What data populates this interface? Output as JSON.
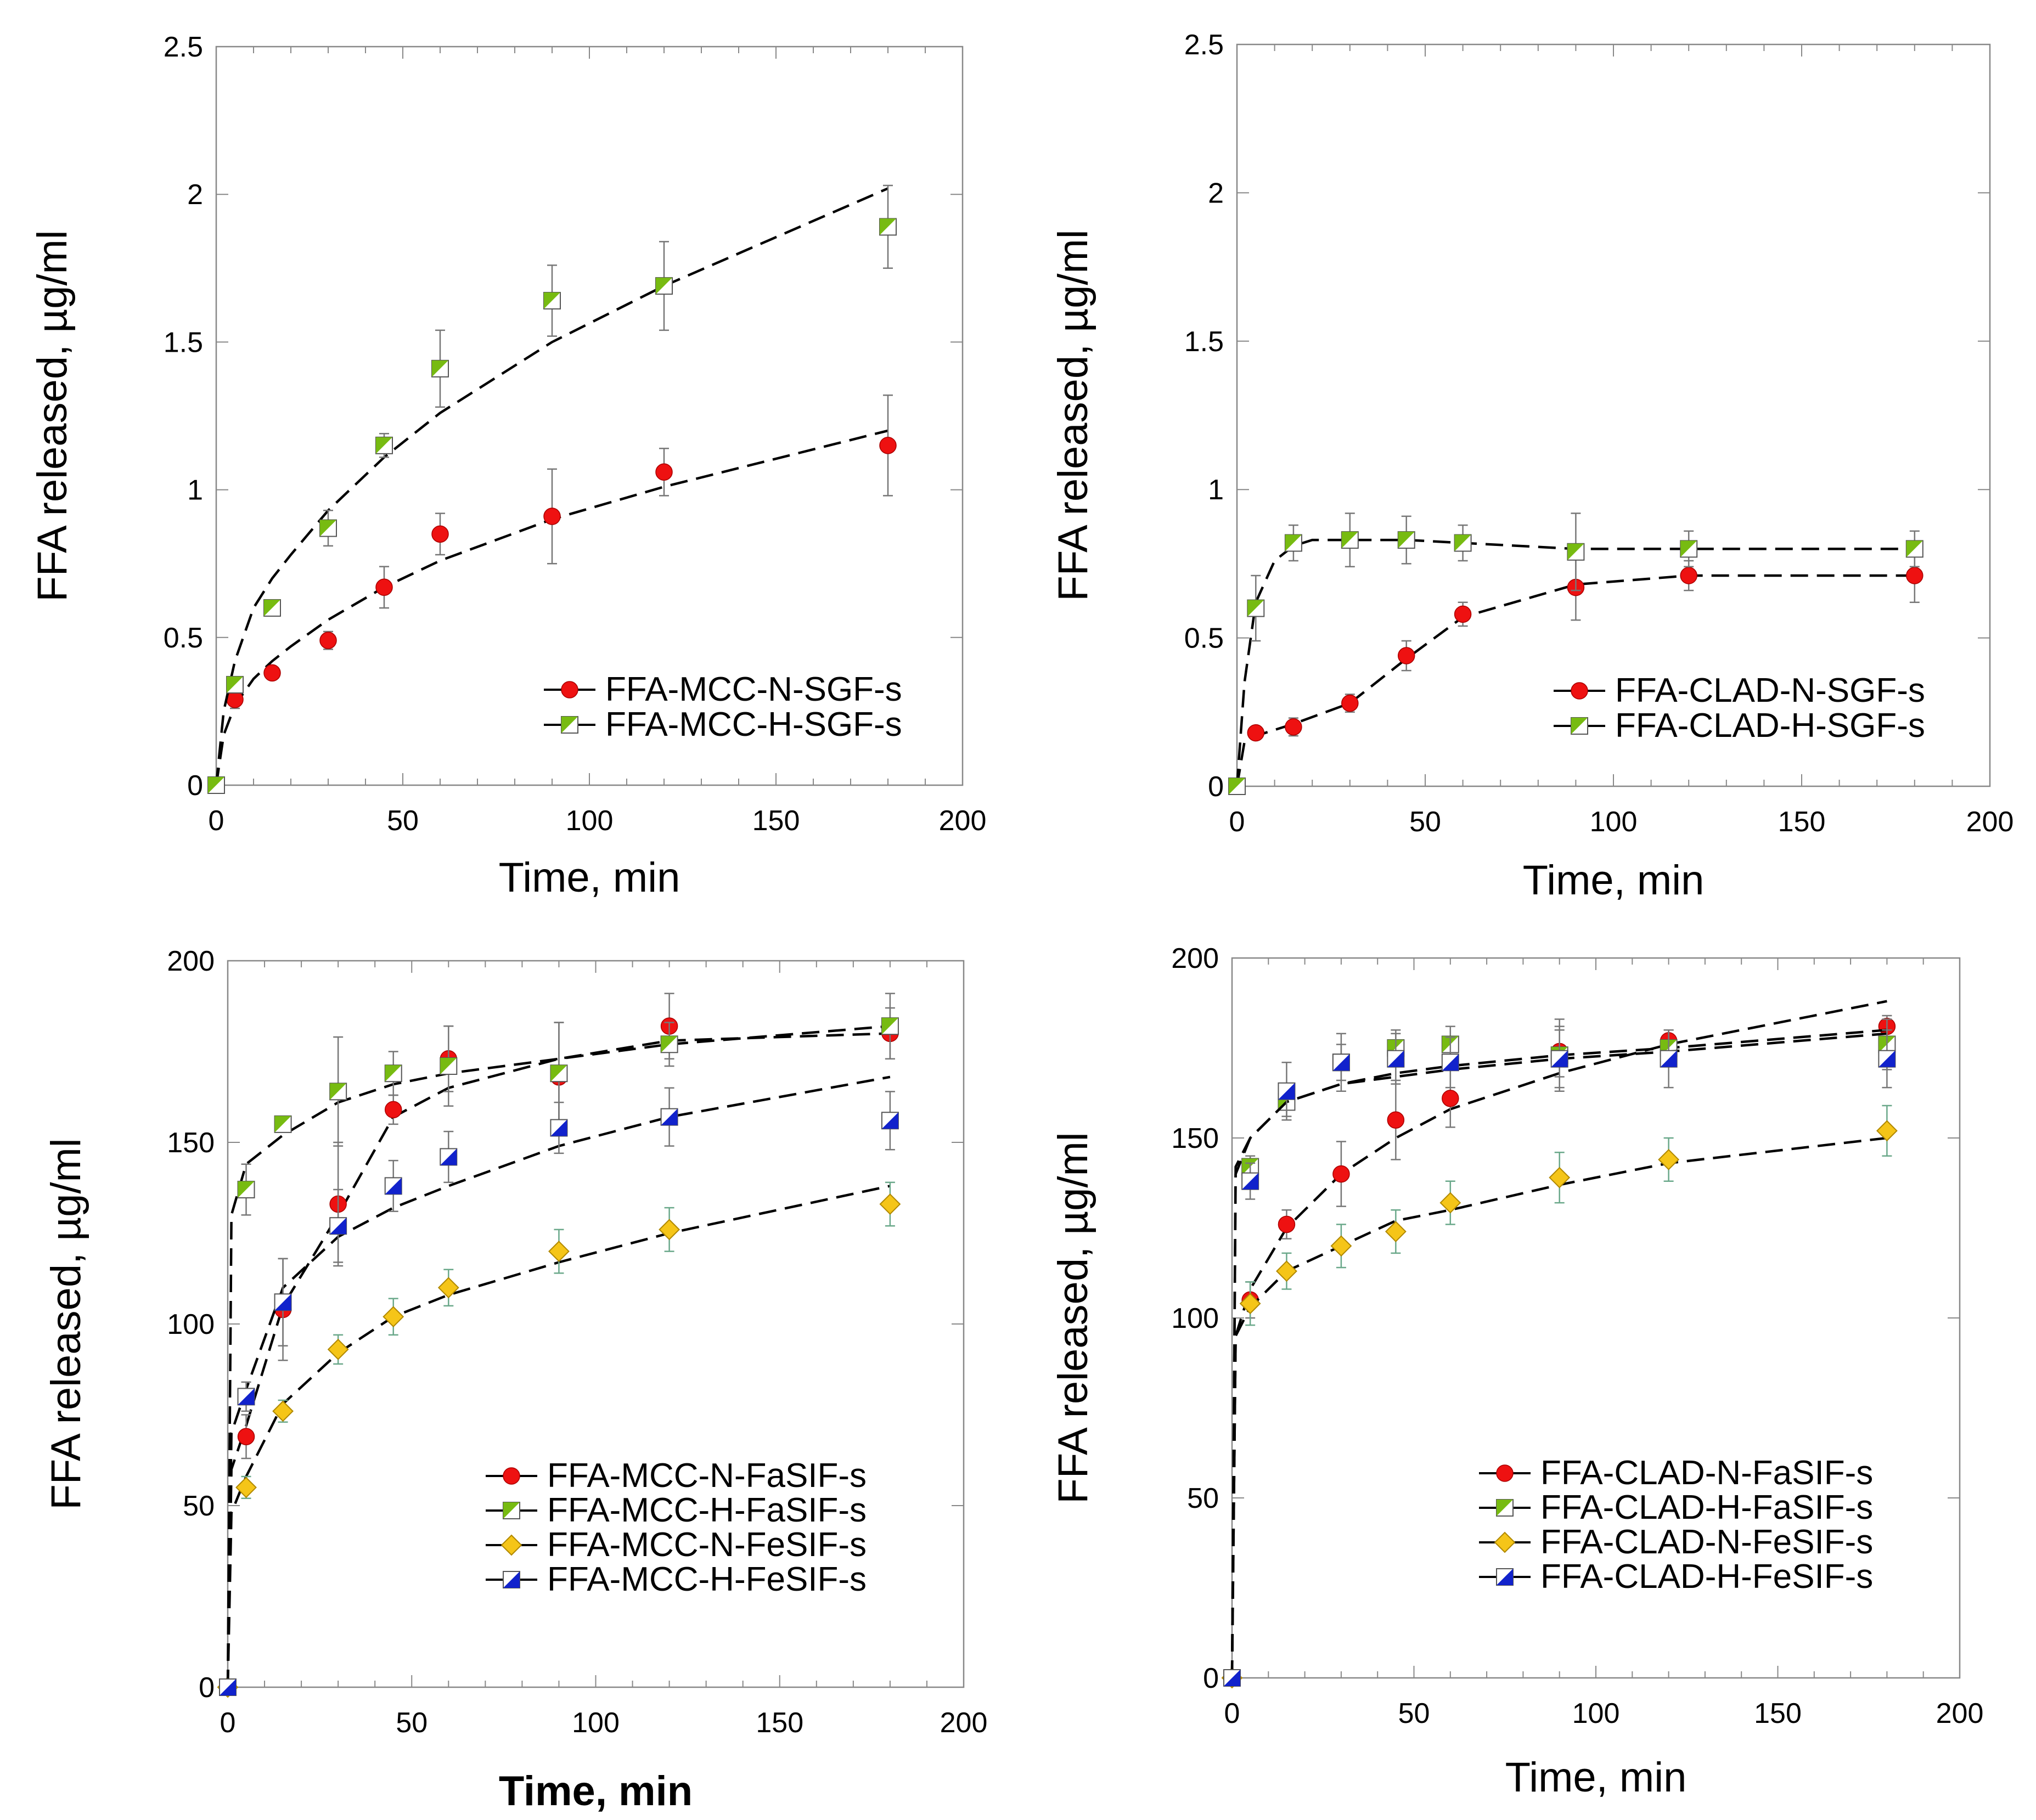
{
  "chart_data": [
    {
      "type": "scatter",
      "title": "",
      "xlabel": "Time, min",
      "ylabel": "FFA released, µg/ml",
      "xlim": [
        0,
        200
      ],
      "ylim": [
        0,
        2.5
      ],
      "xticks": [
        0,
        50,
        100,
        150,
        200
      ],
      "yticks": [
        0,
        0.5,
        1,
        1.5,
        2,
        2.5
      ],
      "ytick_labels": [
        "0",
        "0.5",
        "1",
        "1.5",
        "2",
        "2.5"
      ],
      "legend": "bottom-right",
      "series": [
        {
          "name": "FFA-MCC-N-SGF-s",
          "marker": "circle",
          "color": "#ee1111",
          "x": [
            0,
            5,
            15,
            30,
            45,
            60,
            90,
            120,
            180
          ],
          "y": [
            0,
            0.29,
            0.38,
            0.49,
            0.67,
            0.85,
            0.91,
            1.06,
            1.15
          ],
          "err": [
            0,
            0.03,
            0.02,
            0.03,
            0.07,
            0.07,
            0.16,
            0.08,
            0.17
          ],
          "fit_x": [
            0,
            2,
            5,
            10,
            15,
            20,
            30,
            45,
            60,
            90,
            120,
            180
          ],
          "fit_y": [
            0,
            0.17,
            0.27,
            0.36,
            0.42,
            0.47,
            0.56,
            0.67,
            0.76,
            0.9,
            1.01,
            1.2
          ]
        },
        {
          "name": "FFA-MCC-H-SGF-s",
          "marker": "square-half-ul",
          "color": "#77bb11",
          "x": [
            0,
            5,
            15,
            30,
            45,
            60,
            90,
            120,
            180
          ],
          "y": [
            0,
            0.34,
            0.6,
            0.87,
            1.15,
            1.41,
            1.64,
            1.69,
            1.89
          ],
          "err": [
            0,
            0.02,
            0.01,
            0.06,
            0.04,
            0.13,
            0.12,
            0.15,
            0.14
          ],
          "fit_x": [
            0,
            2,
            5,
            10,
            15,
            20,
            30,
            45,
            60,
            90,
            120,
            180
          ],
          "fit_y": [
            0,
            0.25,
            0.42,
            0.6,
            0.7,
            0.78,
            0.93,
            1.11,
            1.26,
            1.5,
            1.69,
            2.02
          ]
        }
      ]
    },
    {
      "type": "scatter",
      "title": "",
      "xlabel": "Time, min",
      "ylabel": "FFA released, µg/ml",
      "xlim": [
        0,
        200
      ],
      "ylim": [
        0,
        2.5
      ],
      "xticks": [
        0,
        50,
        100,
        150,
        200
      ],
      "yticks": [
        0,
        0.5,
        1,
        1.5,
        2,
        2.5
      ],
      "ytick_labels": [
        "0",
        "0.5",
        "1",
        "1.5",
        "2",
        "2.5"
      ],
      "legend": "bottom-right",
      "series": [
        {
          "name": "FFA-CLAD-N-SGF-s",
          "marker": "circle",
          "color": "#ee1111",
          "x": [
            0,
            5,
            15,
            30,
            45,
            60,
            90,
            120,
            180
          ],
          "y": [
            0,
            0.18,
            0.2,
            0.28,
            0.44,
            0.58,
            0.67,
            0.71,
            0.71
          ],
          "err": [
            0,
            0.01,
            0.03,
            0.03,
            0.05,
            0.04,
            0.11,
            0.05,
            0.09
          ],
          "fit_x": [
            0,
            2,
            5,
            15,
            30,
            45,
            60,
            90,
            120,
            180
          ],
          "fit_y": [
            0,
            0.15,
            0.17,
            0.21,
            0.28,
            0.43,
            0.57,
            0.68,
            0.71,
            0.71
          ]
        },
        {
          "name": "FFA-CLAD-H-SGF-s",
          "marker": "square-half-ul",
          "color": "#77bb11",
          "x": [
            0,
            5,
            15,
            30,
            45,
            60,
            90,
            120,
            180
          ],
          "y": [
            0,
            0.6,
            0.82,
            0.83,
            0.83,
            0.82,
            0.79,
            0.8,
            0.8
          ],
          "err": [
            0,
            0.11,
            0.06,
            0.09,
            0.08,
            0.06,
            0.13,
            0.06,
            0.06
          ],
          "fit_x": [
            0,
            2,
            5,
            10,
            15,
            20,
            30,
            45,
            60,
            90,
            120,
            180
          ],
          "fit_y": [
            0,
            0.35,
            0.62,
            0.76,
            0.81,
            0.83,
            0.83,
            0.83,
            0.82,
            0.8,
            0.8,
            0.8
          ]
        }
      ]
    },
    {
      "type": "scatter",
      "title": "",
      "xlabel": "Time, min",
      "ylabel": "FFA released, µg/ml",
      "xlim": [
        0,
        200
      ],
      "ylim": [
        0,
        200
      ],
      "xticks": [
        0,
        50,
        100,
        150,
        200
      ],
      "yticks": [
        0,
        50,
        100,
        150,
        200
      ],
      "ytick_labels": [
        "0",
        "50",
        "100",
        "150",
        "200"
      ],
      "legend": "bottom-right",
      "series": [
        {
          "name": "FFA-MCC-N-FaSIF-s",
          "marker": "circle",
          "color": "#ee1111",
          "x": [
            0,
            5,
            15,
            30,
            45,
            60,
            90,
            120,
            180
          ],
          "y": [
            0,
            69,
            104,
            133,
            159,
            173,
            168,
            182,
            180
          ],
          "err": [
            0,
            6,
            14,
            17,
            4,
            9,
            15,
            9,
            7
          ],
          "fit_x": [
            0,
            1,
            5,
            15,
            30,
            45,
            60,
            90,
            120,
            180
          ],
          "fit_y": [
            0,
            60,
            72,
            105,
            130,
            157,
            165,
            173,
            178,
            180
          ]
        },
        {
          "name": "FFA-MCC-H-FaSIF-s",
          "marker": "square-half-ul",
          "color": "#77bb11",
          "x": [
            0,
            5,
            15,
            30,
            45,
            60,
            90,
            120,
            180
          ],
          "y": [
            0,
            137,
            155,
            164,
            169,
            171,
            169,
            177,
            182
          ],
          "err": [
            0,
            7,
            1,
            15,
            6,
            11,
            14,
            6,
            9
          ],
          "fit_x": [
            0,
            1,
            5,
            15,
            30,
            45,
            60,
            90,
            120,
            180
          ],
          "fit_y": [
            0,
            130,
            144,
            152,
            161,
            166,
            169,
            173,
            177,
            182
          ]
        },
        {
          "name": "FFA-MCC-N-FeSIF-s",
          "marker": "diamond",
          "color": "#f5c518",
          "x": [
            0,
            5,
            15,
            30,
            45,
            60,
            90,
            120,
            180
          ],
          "y": [
            0,
            55,
            76,
            93,
            102,
            110,
            120,
            126,
            133
          ],
          "err": [
            0,
            3,
            3,
            4,
            5,
            5,
            6,
            6,
            6
          ],
          "fit_x": [
            0,
            1,
            5,
            15,
            30,
            45,
            60,
            90,
            120,
            180
          ],
          "fit_y": [
            0,
            48,
            58,
            78,
            92,
            102,
            108,
            117,
            125,
            138
          ]
        },
        {
          "name": "FFA-MCC-H-FeSIF-s",
          "marker": "square-half-lr",
          "color": "#1122cc",
          "x": [
            0,
            5,
            15,
            30,
            45,
            60,
            90,
            120,
            180
          ],
          "y": [
            0,
            80,
            106,
            127,
            138,
            146,
            154,
            157,
            156
          ],
          "err": [
            0,
            4,
            12,
            10,
            7,
            7,
            7,
            8,
            8
          ],
          "fit_x": [
            0,
            1,
            5,
            15,
            30,
            45,
            60,
            90,
            120,
            180
          ],
          "fit_y": [
            0,
            70,
            82,
            110,
            124,
            132,
            138,
            149,
            157,
            168
          ]
        }
      ]
    },
    {
      "type": "scatter",
      "title": "",
      "xlabel": "Time, min",
      "ylabel": "FFA released, µg/ml",
      "xlim": [
        0,
        200
      ],
      "ylim": [
        0,
        200
      ],
      "xticks": [
        0,
        50,
        100,
        150,
        200
      ],
      "yticks": [
        0,
        50,
        100,
        150,
        200
      ],
      "ytick_labels": [
        "0",
        "50",
        "100",
        "150",
        "200"
      ],
      "legend": "bottom-right",
      "series": [
        {
          "name": "FFA-CLAD-N-FaSIF-s",
          "marker": "circle",
          "color": "#ee1111",
          "x": [
            0,
            5,
            15,
            30,
            45,
            60,
            90,
            120,
            180
          ],
          "y": [
            0,
            105,
            126,
            140,
            155,
            161,
            174,
            177,
            181
          ],
          "err": [
            0,
            5,
            4,
            9,
            11,
            8,
            7,
            3,
            3
          ],
          "fit_x": [
            0,
            1,
            5,
            15,
            30,
            45,
            60,
            90,
            120,
            180
          ],
          "fit_y": [
            0,
            95,
            108,
            125,
            140,
            150,
            158,
            168,
            176,
            188
          ]
        },
        {
          "name": "FFA-CLAD-H-FaSIF-s",
          "marker": "square-half-ul",
          "color": "#77bb11",
          "x": [
            0,
            5,
            15,
            30,
            45,
            60,
            90,
            120,
            180
          ],
          "y": [
            0,
            142,
            160,
            171,
            175,
            176,
            173,
            175,
            176
          ],
          "err": [
            0,
            3,
            4,
            5,
            5,
            5,
            10,
            5,
            7
          ],
          "fit_x": [
            0,
            1,
            5,
            15,
            30,
            45,
            60,
            90,
            120,
            180
          ],
          "fit_y": [
            0,
            140,
            150,
            160,
            165,
            168,
            170,
            173,
            175,
            180
          ]
        },
        {
          "name": "FFA-CLAD-N-FeSIF-s",
          "marker": "diamond",
          "color": "#f5c518",
          "x": [
            0,
            5,
            15,
            30,
            45,
            60,
            90,
            120,
            180
          ],
          "y": [
            0,
            104,
            113,
            120,
            124,
            132,
            139,
            144,
            152
          ],
          "err": [
            0,
            6,
            5,
            6,
            6,
            6,
            7,
            6,
            7
          ],
          "fit_x": [
            0,
            1,
            5,
            15,
            30,
            45,
            60,
            90,
            120,
            180
          ],
          "fit_y": [
            0,
            95,
            103,
            113,
            120,
            127,
            130,
            137,
            143,
            150
          ]
        },
        {
          "name": "FFA-CLAD-H-FeSIF-s",
          "marker": "square-half-lr",
          "color": "#1122cc",
          "x": [
            0,
            5,
            15,
            30,
            45,
            60,
            90,
            120,
            180
          ],
          "y": [
            0,
            138,
            163,
            171,
            172,
            171,
            172,
            172,
            172
          ],
          "err": [
            0,
            5,
            8,
            8,
            7,
            7,
            8,
            8,
            8
          ],
          "fit_x": [
            0,
            1,
            5,
            15,
            30,
            45,
            60,
            90,
            120,
            180
          ],
          "fit_y": [
            0,
            142,
            150,
            160,
            165,
            167,
            169,
            172,
            174,
            179
          ]
        }
      ]
    }
  ]
}
